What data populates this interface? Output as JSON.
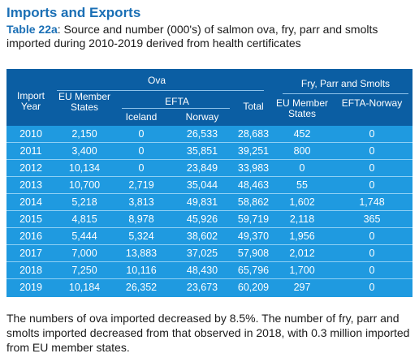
{
  "heading": "Imports and Exports",
  "caption": {
    "table_label": "Table 22a",
    "text": ": Source and number (000's) of salmon ova, fry, parr and smolts imported during 2010-2019 derived from health certificates"
  },
  "table": {
    "headers": {
      "import_year": "Import Year",
      "ova": "Ova",
      "eu_member_states": "EU Member States",
      "efta": "EFTA",
      "iceland": "Iceland",
      "norway": "Norway",
      "total": "Total",
      "fry_parr_smolts": "Fry, Parr and Smolts",
      "fry_eu_member_states": "EU Member States",
      "efta_norway": "EFTA-Norway"
    },
    "rows": [
      {
        "year": "2010",
        "eu": "2,150",
        "iceland": "0",
        "norway": "26,533",
        "total": "28,683",
        "fry_eu": "452",
        "fry_efta": "0"
      },
      {
        "year": "2011",
        "eu": "3,400",
        "iceland": "0",
        "norway": "35,851",
        "total": "39,251",
        "fry_eu": "800",
        "fry_efta": "0"
      },
      {
        "year": "2012",
        "eu": "10,134",
        "iceland": "0",
        "norway": "23,849",
        "total": "33,983",
        "fry_eu": "0",
        "fry_efta": "0"
      },
      {
        "year": "2013",
        "eu": "10,700",
        "iceland": "2,719",
        "norway": "35,044",
        "total": "48,463",
        "fry_eu": "55",
        "fry_efta": "0"
      },
      {
        "year": "2014",
        "eu": "5,218",
        "iceland": "3,813",
        "norway": "49,831",
        "total": "58,862",
        "fry_eu": "1,602",
        "fry_efta": "1,748"
      },
      {
        "year": "2015",
        "eu": "4,815",
        "iceland": "8,978",
        "norway": "45,926",
        "total": "59,719",
        "fry_eu": "2,118",
        "fry_efta": "365"
      },
      {
        "year": "2016",
        "eu": "5,444",
        "iceland": "5,324",
        "norway": "38,602",
        "total": "49,370",
        "fry_eu": "1,956",
        "fry_efta": "0"
      },
      {
        "year": "2017",
        "eu": "7,000",
        "iceland": "13,883",
        "norway": "37,025",
        "total": "57,908",
        "fry_eu": "2,012",
        "fry_efta": "0"
      },
      {
        "year": "2018",
        "eu": "7,250",
        "iceland": "10,116",
        "norway": "48,430",
        "total": "65,796",
        "fry_eu": "1,700",
        "fry_efta": "0"
      },
      {
        "year": "2019",
        "eu": "10,184",
        "iceland": "26,352",
        "norway": "23,673",
        "total": "60,209",
        "fry_eu": "297",
        "fry_efta": "0"
      }
    ]
  },
  "note": "The numbers of ova imported decreased by 8.5%. The number of fry, parr and smolts imported decreased from that observed in 2018, with 0.3 million imported from EU member states.",
  "colors": {
    "title_blue": "#1a6fb5",
    "header_dark_blue": "#0b5ea3",
    "body_light_blue": "#1f9ae0"
  }
}
